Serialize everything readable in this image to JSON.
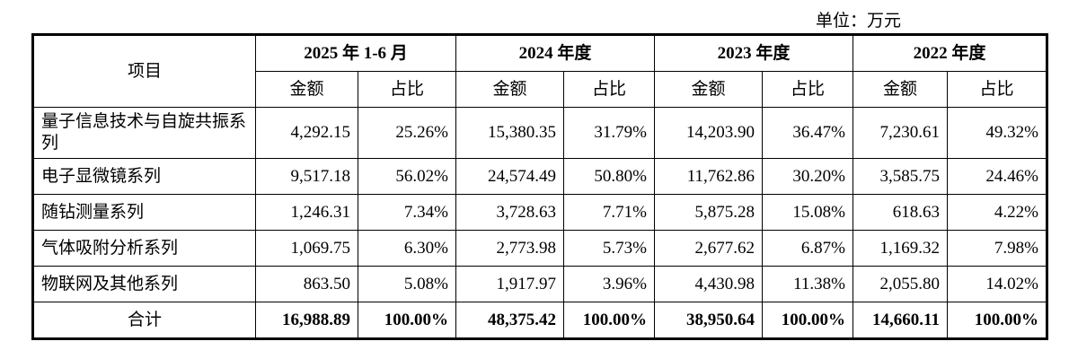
{
  "unit_label": "单位：万元",
  "table": {
    "item_header": "项目",
    "periods": [
      "2025 年 1-6 月",
      "2024 年度",
      "2023 年度",
      "2022 年度"
    ],
    "sub_headers": {
      "amount": "金额",
      "ratio": "占比"
    },
    "rows": [
      {
        "name": "量子信息技术与自旋共振系列",
        "cells": [
          "4,292.15",
          "25.26%",
          "15,380.35",
          "31.79%",
          "14,203.90",
          "36.47%",
          "7,230.61",
          "49.32%"
        ]
      },
      {
        "name": "电子显微镜系列",
        "cells": [
          "9,517.18",
          "56.02%",
          "24,574.49",
          "50.80%",
          "11,762.86",
          "30.20%",
          "3,585.75",
          "24.46%"
        ]
      },
      {
        "name": "随钻测量系列",
        "cells": [
          "1,246.31",
          "7.34%",
          "3,728.63",
          "7.71%",
          "5,875.28",
          "15.08%",
          "618.63",
          "4.22%"
        ]
      },
      {
        "name": "气体吸附分析系列",
        "cells": [
          "1,069.75",
          "6.30%",
          "2,773.98",
          "5.73%",
          "2,677.62",
          "6.87%",
          "1,169.32",
          "7.98%"
        ]
      },
      {
        "name": "物联网及其他系列",
        "cells": [
          "863.50",
          "5.08%",
          "1,917.97",
          "3.96%",
          "4,430.98",
          "11.38%",
          "2,055.80",
          "14.02%"
        ]
      }
    ],
    "total": {
      "name": "合计",
      "cells": [
        "16,988.89",
        "100.00%",
        "48,375.42",
        "100.00%",
        "38,950.64",
        "100.00%",
        "14,660.11",
        "100.00%"
      ]
    }
  }
}
